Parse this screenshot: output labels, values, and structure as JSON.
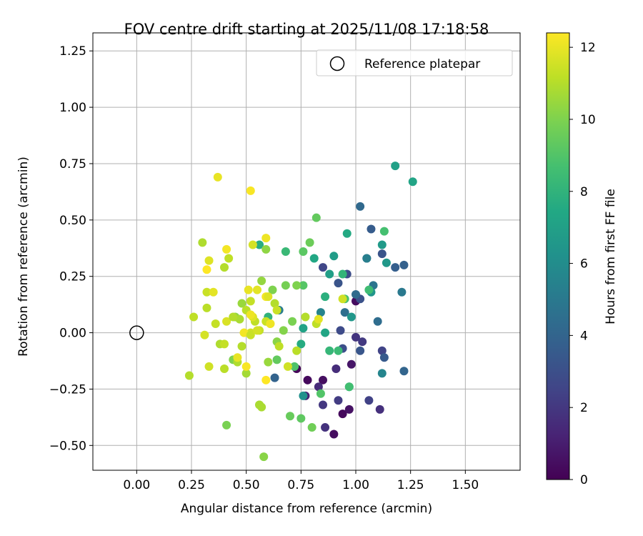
{
  "chart_data": {
    "type": "scatter",
    "title": "FOV centre drift starting at 2025/11/08 17:18:58",
    "xlabel": "Angular distance from reference (arcmin)",
    "ylabel": "Rotation from reference (arcmin)",
    "xlim": [
      -0.2,
      1.75
    ],
    "ylim": [
      -0.61,
      1.33
    ],
    "grid": true,
    "xticks": [
      0.0,
      0.25,
      0.5,
      0.75,
      1.0,
      1.25,
      1.5
    ],
    "xtick_labels": [
      "0.00",
      "0.25",
      "0.50",
      "0.75",
      "1.00",
      "1.25",
      "1.50"
    ],
    "yticks": [
      -0.5,
      -0.25,
      0.0,
      0.25,
      0.5,
      0.75,
      1.0,
      1.25
    ],
    "ytick_labels": [
      "−0.50",
      "−0.25",
      "0.00",
      "0.25",
      "0.50",
      "0.75",
      "1.00",
      "1.25"
    ],
    "legend": {
      "location": "top-right",
      "entries": [
        "Reference platepar"
      ]
    },
    "reference_point": {
      "x": 0.0,
      "y": 0.0,
      "label": "Reference platepar"
    },
    "colorbar": {
      "label": "Hours from first FF file",
      "colormap": "viridis",
      "range": [
        0,
        12.4
      ],
      "ticks": [
        0,
        2,
        4,
        6,
        8,
        10,
        12
      ],
      "tick_labels": [
        "0",
        "2",
        "4",
        "6",
        "8",
        "10",
        "12"
      ]
    },
    "colors": {
      "viridis": [
        "#440154",
        "#482475",
        "#414487",
        "#355f8d",
        "#2a788e",
        "#21918c",
        "#22a884",
        "#44bf70",
        "#7ad151",
        "#bddf26",
        "#fde725"
      ],
      "grid": "#b0b0b0",
      "axis": "#000000"
    },
    "points": [
      {
        "x": 0.73,
        "y": -0.16,
        "h": 0.2
      },
      {
        "x": 0.78,
        "y": -0.21,
        "h": 0.3
      },
      {
        "x": 0.85,
        "y": -0.21,
        "h": 0.5
      },
      {
        "x": 0.9,
        "y": -0.45,
        "h": 0.4
      },
      {
        "x": 0.94,
        "y": -0.36,
        "h": 0.3
      },
      {
        "x": 0.97,
        "y": -0.34,
        "h": 0.6
      },
      {
        "x": 0.98,
        "y": -0.14,
        "h": 0.7
      },
      {
        "x": 1.0,
        "y": 0.14,
        "h": 0.4
      },
      {
        "x": 0.77,
        "y": -0.28,
        "h": 1.2
      },
      {
        "x": 0.83,
        "y": -0.24,
        "h": 1.5
      },
      {
        "x": 0.85,
        "y": -0.32,
        "h": 2.0
      },
      {
        "x": 0.86,
        "y": -0.42,
        "h": 1.8
      },
      {
        "x": 0.91,
        "y": -0.16,
        "h": 1.6
      },
      {
        "x": 0.92,
        "y": -0.3,
        "h": 2.2
      },
      {
        "x": 1.0,
        "y": -0.02,
        "h": 1.9
      },
      {
        "x": 1.03,
        "y": -0.04,
        "h": 2.1
      },
      {
        "x": 1.06,
        "y": -0.3,
        "h": 2.4
      },
      {
        "x": 1.11,
        "y": -0.34,
        "h": 1.7
      },
      {
        "x": 1.12,
        "y": -0.08,
        "h": 2.5
      },
      {
        "x": 0.85,
        "y": 0.29,
        "h": 2.6
      },
      {
        "x": 0.93,
        "y": 0.01,
        "h": 2.8
      },
      {
        "x": 0.94,
        "y": -0.07,
        "h": 3.0
      },
      {
        "x": 0.92,
        "y": 0.22,
        "h": 3.2
      },
      {
        "x": 0.96,
        "y": 0.26,
        "h": 2.9
      },
      {
        "x": 1.02,
        "y": 0.15,
        "h": 3.1
      },
      {
        "x": 1.02,
        "y": -0.08,
        "h": 3.3
      },
      {
        "x": 1.05,
        "y": 0.33,
        "h": 3.4
      },
      {
        "x": 1.07,
        "y": 0.46,
        "h": 3.6
      },
      {
        "x": 1.12,
        "y": 0.35,
        "h": 3.2
      },
      {
        "x": 1.13,
        "y": -0.11,
        "h": 3.5
      },
      {
        "x": 1.18,
        "y": 0.29,
        "h": 3.7
      },
      {
        "x": 1.22,
        "y": 0.3,
        "h": 3.8
      },
      {
        "x": 1.22,
        "y": -0.17,
        "h": 4.0
      },
      {
        "x": 1.02,
        "y": 0.56,
        "h": 4.2
      },
      {
        "x": 0.95,
        "y": 0.09,
        "h": 4.5
      },
      {
        "x": 1.0,
        "y": 0.17,
        "h": 4.3
      },
      {
        "x": 1.08,
        "y": 0.21,
        "h": 4.8
      },
      {
        "x": 1.1,
        "y": 0.05,
        "h": 4.4
      },
      {
        "x": 1.21,
        "y": 0.18,
        "h": 5.0
      },
      {
        "x": 0.63,
        "y": -0.2,
        "h": 3.9
      },
      {
        "x": 0.65,
        "y": 0.1,
        "h": 5.2
      },
      {
        "x": 0.84,
        "y": 0.09,
        "h": 5.5
      },
      {
        "x": 1.12,
        "y": -0.18,
        "h": 5.6
      },
      {
        "x": 1.05,
        "y": 0.33,
        "h": 5.3
      },
      {
        "x": 0.98,
        "y": 0.07,
        "h": 6.5
      },
      {
        "x": 1.07,
        "y": 0.18,
        "h": 6.4
      },
      {
        "x": 1.12,
        "y": 0.39,
        "h": 6.7
      },
      {
        "x": 1.14,
        "y": 0.31,
        "h": 6.6
      },
      {
        "x": 1.18,
        "y": 0.74,
        "h": 7.0
      },
      {
        "x": 1.26,
        "y": 0.67,
        "h": 7.2
      },
      {
        "x": 0.9,
        "y": 0.34,
        "h": 6.8
      },
      {
        "x": 0.88,
        "y": 0.26,
        "h": 6.9
      },
      {
        "x": 0.96,
        "y": 0.44,
        "h": 7.5
      },
      {
        "x": 0.97,
        "y": -0.24,
        "h": 6.3
      },
      {
        "x": 0.86,
        "y": 0.0,
        "h": 7.3
      },
      {
        "x": 0.81,
        "y": 0.33,
        "h": 7.4
      },
      {
        "x": 0.76,
        "y": 0.02,
        "h": 7.1
      },
      {
        "x": 0.76,
        "y": -0.28,
        "h": 6.2
      },
      {
        "x": 0.75,
        "y": -0.05,
        "h": 7.6
      },
      {
        "x": 0.86,
        "y": 0.16,
        "h": 7.8
      },
      {
        "x": 0.88,
        "y": -0.08,
        "h": 8.2
      },
      {
        "x": 0.92,
        "y": -0.08,
        "h": 8.4
      },
      {
        "x": 0.94,
        "y": 0.26,
        "h": 8.1
      },
      {
        "x": 0.97,
        "y": -0.24,
        "h": 8.6
      },
      {
        "x": 1.06,
        "y": 0.19,
        "h": 8.5
      },
      {
        "x": 1.13,
        "y": 0.45,
        "h": 8.7
      },
      {
        "x": 0.95,
        "y": 0.15,
        "h": 8.8
      },
      {
        "x": 0.68,
        "y": 0.36,
        "h": 8.3
      },
      {
        "x": 0.6,
        "y": 0.07,
        "h": 8.0
      },
      {
        "x": 0.56,
        "y": 0.39,
        "h": 7.7
      },
      {
        "x": 0.72,
        "y": -0.15,
        "h": 8.9
      },
      {
        "x": 0.76,
        "y": 0.21,
        "h": 9.1
      },
      {
        "x": 0.76,
        "y": 0.36,
        "h": 9.2
      },
      {
        "x": 0.82,
        "y": 0.51,
        "h": 9.4
      },
      {
        "x": 0.79,
        "y": 0.4,
        "h": 9.6
      },
      {
        "x": 0.84,
        "y": -0.27,
        "h": 9.0
      },
      {
        "x": 0.75,
        "y": -0.38,
        "h": 9.3
      },
      {
        "x": 0.7,
        "y": -0.37,
        "h": 9.5
      },
      {
        "x": 0.8,
        "y": -0.42,
        "h": 9.7
      },
      {
        "x": 0.68,
        "y": 0.21,
        "h": 9.8
      },
      {
        "x": 0.73,
        "y": 0.21,
        "h": 10.0
      },
      {
        "x": 0.71,
        "y": 0.05,
        "h": 9.9
      },
      {
        "x": 0.67,
        "y": 0.01,
        "h": 10.1
      },
      {
        "x": 0.64,
        "y": -0.04,
        "h": 10.2
      },
      {
        "x": 0.64,
        "y": -0.12,
        "h": 9.4
      },
      {
        "x": 0.59,
        "y": 0.37,
        "h": 10.3
      },
      {
        "x": 0.57,
        "y": 0.23,
        "h": 10.4
      },
      {
        "x": 0.62,
        "y": 0.19,
        "h": 10.0
      },
      {
        "x": 0.6,
        "y": -0.13,
        "h": 10.5
      },
      {
        "x": 0.58,
        "y": -0.55,
        "h": 10.2
      },
      {
        "x": 0.56,
        "y": -0.32,
        "h": 10.6
      },
      {
        "x": 0.57,
        "y": -0.33,
        "h": 10.8
      },
      {
        "x": 0.5,
        "y": -0.18,
        "h": 10.7
      },
      {
        "x": 0.41,
        "y": -0.41,
        "h": 9.9
      },
      {
        "x": 0.44,
        "y": -0.12,
        "h": 10.0
      },
      {
        "x": 0.46,
        "y": -0.13,
        "h": 10.9
      },
      {
        "x": 0.48,
        "y": -0.06,
        "h": 11.0
      },
      {
        "x": 0.48,
        "y": 0.13,
        "h": 10.5
      },
      {
        "x": 0.45,
        "y": 0.07,
        "h": 10.3
      },
      {
        "x": 0.47,
        "y": 0.06,
        "h": 10.8
      },
      {
        "x": 0.5,
        "y": 0.1,
        "h": 11.1
      },
      {
        "x": 0.52,
        "y": 0.14,
        "h": 11.3
      },
      {
        "x": 0.54,
        "y": 0.05,
        "h": 11.2
      },
      {
        "x": 0.63,
        "y": 0.13,
        "h": 11.0
      },
      {
        "x": 0.64,
        "y": 0.1,
        "h": 11.4
      },
      {
        "x": 0.82,
        "y": 0.04,
        "h": 11.2
      },
      {
        "x": 0.83,
        "y": 0.06,
        "h": 11.9
      },
      {
        "x": 0.94,
        "y": 0.15,
        "h": 11.5
      },
      {
        "x": 0.77,
        "y": 0.07,
        "h": 11.0
      },
      {
        "x": 0.73,
        "y": -0.08,
        "h": 11.1
      },
      {
        "x": 0.65,
        "y": -0.06,
        "h": 11.2
      },
      {
        "x": 0.59,
        "y": 0.05,
        "h": 11.4
      },
      {
        "x": 0.61,
        "y": 0.04,
        "h": 11.7
      },
      {
        "x": 0.56,
        "y": 0.01,
        "h": 11.3
      },
      {
        "x": 0.52,
        "y": 0.0,
        "h": 11.5
      },
      {
        "x": 0.49,
        "y": 0.0,
        "h": 11.6
      },
      {
        "x": 0.53,
        "y": 0.07,
        "h": 11.8
      },
      {
        "x": 0.52,
        "y": 0.08,
        "h": 12.1
      },
      {
        "x": 0.55,
        "y": 0.19,
        "h": 11.9
      },
      {
        "x": 0.51,
        "y": 0.19,
        "h": 12.0
      },
      {
        "x": 0.59,
        "y": 0.16,
        "h": 12.2
      },
      {
        "x": 0.6,
        "y": 0.16,
        "h": 11.8
      },
      {
        "x": 0.59,
        "y": 0.42,
        "h": 12.1
      },
      {
        "x": 0.53,
        "y": 0.39,
        "h": 11.6
      },
      {
        "x": 0.52,
        "y": 0.63,
        "h": 12.3
      },
      {
        "x": 0.37,
        "y": 0.69,
        "h": 12.0
      },
      {
        "x": 0.41,
        "y": 0.37,
        "h": 12.2
      },
      {
        "x": 0.42,
        "y": 0.33,
        "h": 11.2
      },
      {
        "x": 0.4,
        "y": 0.29,
        "h": 11.0
      },
      {
        "x": 0.32,
        "y": 0.28,
        "h": 12.4
      },
      {
        "x": 0.33,
        "y": 0.32,
        "h": 11.8
      },
      {
        "x": 0.3,
        "y": 0.4,
        "h": 10.9
      },
      {
        "x": 0.32,
        "y": 0.18,
        "h": 11.4
      },
      {
        "x": 0.35,
        "y": 0.18,
        "h": 11.9
      },
      {
        "x": 0.32,
        "y": 0.11,
        "h": 11.1
      },
      {
        "x": 0.36,
        "y": 0.04,
        "h": 11.3
      },
      {
        "x": 0.31,
        "y": -0.01,
        "h": 11.6
      },
      {
        "x": 0.26,
        "y": 0.07,
        "h": 11.2
      },
      {
        "x": 0.24,
        "y": -0.19,
        "h": 11.0
      },
      {
        "x": 0.33,
        "y": -0.15,
        "h": 11.5
      },
      {
        "x": 0.38,
        "y": -0.05,
        "h": 10.9
      },
      {
        "x": 0.4,
        "y": -0.05,
        "h": 11.3
      },
      {
        "x": 0.4,
        "y": -0.16,
        "h": 11.1
      },
      {
        "x": 0.41,
        "y": 0.05,
        "h": 11.7
      },
      {
        "x": 0.44,
        "y": 0.07,
        "h": 11.0
      },
      {
        "x": 0.46,
        "y": -0.11,
        "h": 12.0
      },
      {
        "x": 0.49,
        "y": 0.0,
        "h": 12.2
      },
      {
        "x": 0.5,
        "y": -0.15,
        "h": 12.3
      },
      {
        "x": 0.52,
        "y": -0.01,
        "h": 11.4
      },
      {
        "x": 0.55,
        "y": 0.01,
        "h": 11.6
      },
      {
        "x": 0.59,
        "y": -0.21,
        "h": 12.4
      },
      {
        "x": 0.61,
        "y": 0.04,
        "h": 12.1
      },
      {
        "x": 0.69,
        "y": -0.15,
        "h": 11.5
      },
      {
        "x": 0.56,
        "y": -0.32,
        "h": 10.8
      }
    ]
  }
}
